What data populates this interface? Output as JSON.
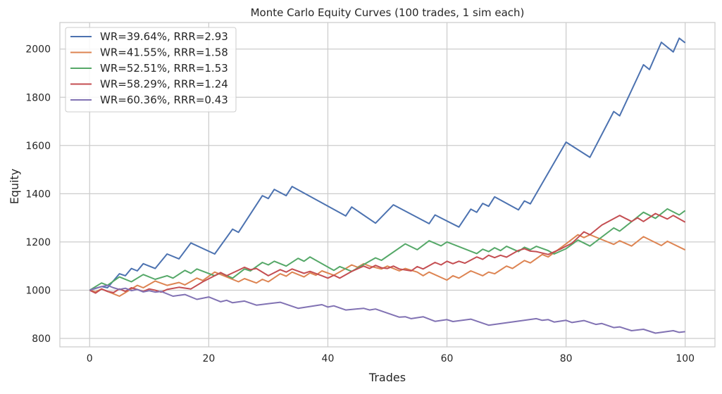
{
  "chart_data": {
    "type": "line",
    "title": "Monte Carlo Equity Curves (100 trades, 1 sim each)",
    "xlabel": "Trades",
    "ylabel": "Equity",
    "xlim": [
      -5,
      105
    ],
    "ylim": [
      765,
      2110
    ],
    "xticks": [
      0,
      20,
      40,
      60,
      80,
      100
    ],
    "yticks": [
      800,
      1000,
      1200,
      1400,
      1600,
      1800,
      2000
    ],
    "grid": true,
    "legend_position": "upper left",
    "x": [
      0,
      2,
      3,
      5,
      6,
      7,
      8,
      9,
      11,
      13,
      15,
      17,
      21,
      24,
      25,
      29,
      30,
      31,
      33,
      34,
      43,
      44,
      48,
      51,
      57,
      58,
      62,
      64,
      65,
      66,
      67,
      68,
      72,
      73,
      74,
      80,
      84,
      88,
      89,
      93,
      94,
      96,
      98,
      99,
      100
    ],
    "series": [
      {
        "name": "WR=39.64%, RRR=2.93",
        "color": "#4c72b0",
        "points": [
          [
            0,
            1000
          ],
          [
            2,
            1015
          ],
          [
            3,
            1010
          ],
          [
            5,
            1068
          ],
          [
            6,
            1060
          ],
          [
            7,
            1090
          ],
          [
            8,
            1080
          ],
          [
            9,
            1110
          ],
          [
            11,
            1090
          ],
          [
            13,
            1150
          ],
          [
            15,
            1130
          ],
          [
            17,
            1196
          ],
          [
            21,
            1150
          ],
          [
            24,
            1253
          ],
          [
            25,
            1240
          ],
          [
            29,
            1392
          ],
          [
            30,
            1380
          ],
          [
            31,
            1418
          ],
          [
            33,
            1392
          ],
          [
            34,
            1430
          ],
          [
            43,
            1308
          ],
          [
            44,
            1345
          ],
          [
            48,
            1278
          ],
          [
            51,
            1354
          ],
          [
            57,
            1276
          ],
          [
            58,
            1312
          ],
          [
            62,
            1262
          ],
          [
            64,
            1336
          ],
          [
            65,
            1323
          ],
          [
            66,
            1360
          ],
          [
            67,
            1348
          ],
          [
            68,
            1387
          ],
          [
            72,
            1333
          ],
          [
            73,
            1370
          ],
          [
            74,
            1358
          ],
          [
            80,
            1614
          ],
          [
            84,
            1551
          ],
          [
            88,
            1741
          ],
          [
            89,
            1723
          ],
          [
            93,
            1935
          ],
          [
            94,
            1915
          ],
          [
            96,
            2028
          ],
          [
            98,
            1988
          ],
          [
            99,
            2045
          ],
          [
            100,
            2026
          ]
        ]
      },
      {
        "name": "WR=41.55%, RRR=1.58",
        "color": "#dd8452",
        "points": [
          [
            0,
            1000
          ],
          [
            1,
            993
          ],
          [
            2,
            1005
          ],
          [
            3,
            995
          ],
          [
            4,
            985
          ],
          [
            5,
            975
          ],
          [
            6,
            990
          ],
          [
            7,
            1005
          ],
          [
            8,
            1020
          ],
          [
            9,
            1010
          ],
          [
            11,
            1038
          ],
          [
            13,
            1020
          ],
          [
            15,
            1032
          ],
          [
            16,
            1022
          ],
          [
            18,
            1050
          ],
          [
            19,
            1040
          ],
          [
            21,
            1075
          ],
          [
            23,
            1055
          ],
          [
            25,
            1035
          ],
          [
            26,
            1048
          ],
          [
            28,
            1030
          ],
          [
            29,
            1045
          ],
          [
            30,
            1035
          ],
          [
            32,
            1068
          ],
          [
            33,
            1058
          ],
          [
            34,
            1075
          ],
          [
            36,
            1055
          ],
          [
            37,
            1072
          ],
          [
            38,
            1062
          ],
          [
            39,
            1080
          ],
          [
            41,
            1062
          ],
          [
            43,
            1090
          ],
          [
            44,
            1105
          ],
          [
            45,
            1095
          ],
          [
            46,
            1110
          ],
          [
            47,
            1100
          ],
          [
            49,
            1088
          ],
          [
            50,
            1100
          ],
          [
            52,
            1080
          ],
          [
            53,
            1090
          ],
          [
            55,
            1075
          ],
          [
            56,
            1060
          ],
          [
            57,
            1075
          ],
          [
            60,
            1042
          ],
          [
            61,
            1060
          ],
          [
            62,
            1050
          ],
          [
            64,
            1080
          ],
          [
            66,
            1060
          ],
          [
            67,
            1075
          ],
          [
            68,
            1068
          ],
          [
            70,
            1100
          ],
          [
            71,
            1090
          ],
          [
            73,
            1123
          ],
          [
            74,
            1113
          ],
          [
            76,
            1148
          ],
          [
            77,
            1138
          ],
          [
            80,
            1192
          ],
          [
            82,
            1230
          ],
          [
            83,
            1218
          ],
          [
            84,
            1230
          ],
          [
            86,
            1210
          ],
          [
            88,
            1190
          ],
          [
            89,
            1205
          ],
          [
            91,
            1183
          ],
          [
            93,
            1222
          ],
          [
            96,
            1185
          ],
          [
            97,
            1203
          ],
          [
            100,
            1167
          ]
        ]
      },
      {
        "name": "WR=52.51%, RRR=1.53",
        "color": "#55a868",
        "points": [
          [
            0,
            1000
          ],
          [
            2,
            1030
          ],
          [
            3,
            1020
          ],
          [
            5,
            1055
          ],
          [
            7,
            1035
          ],
          [
            9,
            1065
          ],
          [
            11,
            1045
          ],
          [
            13,
            1060
          ],
          [
            14,
            1050
          ],
          [
            16,
            1082
          ],
          [
            17,
            1070
          ],
          [
            18,
            1088
          ],
          [
            21,
            1060
          ],
          [
            22,
            1072
          ],
          [
            24,
            1050
          ],
          [
            26,
            1088
          ],
          [
            27,
            1080
          ],
          [
            29,
            1115
          ],
          [
            30,
            1105
          ],
          [
            31,
            1120
          ],
          [
            33,
            1100
          ],
          [
            35,
            1132
          ],
          [
            36,
            1120
          ],
          [
            37,
            1138
          ],
          [
            41,
            1082
          ],
          [
            42,
            1098
          ],
          [
            44,
            1078
          ],
          [
            47,
            1120
          ],
          [
            48,
            1134
          ],
          [
            49,
            1124
          ],
          [
            53,
            1192
          ],
          [
            55,
            1168
          ],
          [
            57,
            1205
          ],
          [
            59,
            1184
          ],
          [
            60,
            1200
          ],
          [
            65,
            1152
          ],
          [
            66,
            1170
          ],
          [
            67,
            1160
          ],
          [
            68,
            1176
          ],
          [
            69,
            1164
          ],
          [
            70,
            1182
          ],
          [
            72,
            1160
          ],
          [
            73,
            1178
          ],
          [
            74,
            1168
          ],
          [
            75,
            1182
          ],
          [
            77,
            1164
          ],
          [
            78,
            1150
          ],
          [
            80,
            1172
          ],
          [
            82,
            1208
          ],
          [
            84,
            1183
          ],
          [
            88,
            1258
          ],
          [
            89,
            1245
          ],
          [
            93,
            1323
          ],
          [
            95,
            1298
          ],
          [
            97,
            1337
          ],
          [
            99,
            1312
          ],
          [
            100,
            1330
          ]
        ]
      },
      {
        "name": "WR=58.29%, RRR=1.24",
        "color": "#c44e52",
        "points": [
          [
            0,
            1000
          ],
          [
            1,
            988
          ],
          [
            2,
            1005
          ],
          [
            3,
            995
          ],
          [
            4,
            990
          ],
          [
            5,
            1005
          ],
          [
            6,
            995
          ],
          [
            7,
            1010
          ],
          [
            8,
            1003
          ],
          [
            9,
            995
          ],
          [
            10,
            1005
          ],
          [
            11,
            1000
          ],
          [
            12,
            992
          ],
          [
            13,
            1003
          ],
          [
            15,
            1012
          ],
          [
            17,
            1005
          ],
          [
            19,
            1035
          ],
          [
            21,
            1060
          ],
          [
            22,
            1073
          ],
          [
            23,
            1060
          ],
          [
            25,
            1083
          ],
          [
            26,
            1095
          ],
          [
            27,
            1085
          ],
          [
            28,
            1090
          ],
          [
            30,
            1060
          ],
          [
            32,
            1085
          ],
          [
            33,
            1075
          ],
          [
            34,
            1088
          ],
          [
            36,
            1070
          ],
          [
            37,
            1078
          ],
          [
            39,
            1060
          ],
          [
            40,
            1050
          ],
          [
            41,
            1062
          ],
          [
            42,
            1050
          ],
          [
            44,
            1078
          ],
          [
            46,
            1100
          ],
          [
            47,
            1090
          ],
          [
            48,
            1103
          ],
          [
            49,
            1093
          ],
          [
            50,
            1090
          ],
          [
            51,
            1100
          ],
          [
            52,
            1088
          ],
          [
            54,
            1080
          ],
          [
            55,
            1098
          ],
          [
            56,
            1088
          ],
          [
            58,
            1115
          ],
          [
            59,
            1105
          ],
          [
            60,
            1120
          ],
          [
            61,
            1110
          ],
          [
            62,
            1120
          ],
          [
            63,
            1112
          ],
          [
            65,
            1138
          ],
          [
            66,
            1128
          ],
          [
            67,
            1145
          ],
          [
            68,
            1135
          ],
          [
            69,
            1145
          ],
          [
            70,
            1137
          ],
          [
            72,
            1165
          ],
          [
            73,
            1172
          ],
          [
            74,
            1162
          ],
          [
            75,
            1160
          ],
          [
            77,
            1148
          ],
          [
            79,
            1170
          ],
          [
            81,
            1195
          ],
          [
            82,
            1218
          ],
          [
            83,
            1242
          ],
          [
            84,
            1230
          ],
          [
            86,
            1270
          ],
          [
            89,
            1310
          ],
          [
            91,
            1285
          ],
          [
            92,
            1300
          ],
          [
            93,
            1285
          ],
          [
            95,
            1318
          ],
          [
            97,
            1295
          ],
          [
            98,
            1310
          ],
          [
            100,
            1282
          ]
        ]
      },
      {
        "name": "WR=60.36%, RRR=0.43",
        "color": "#8172b3",
        "points": [
          [
            0,
            1000
          ],
          [
            1,
            1008
          ],
          [
            2,
            1015
          ],
          [
            3,
            1020
          ],
          [
            4,
            1010
          ],
          [
            5,
            1003
          ],
          [
            6,
            1008
          ],
          [
            7,
            998
          ],
          [
            8,
            1003
          ],
          [
            9,
            993
          ],
          [
            10,
            998
          ],
          [
            11,
            992
          ],
          [
            12,
            995
          ],
          [
            14,
            975
          ],
          [
            16,
            982
          ],
          [
            18,
            962
          ],
          [
            20,
            972
          ],
          [
            22,
            952
          ],
          [
            23,
            958
          ],
          [
            24,
            948
          ],
          [
            26,
            955
          ],
          [
            28,
            938
          ],
          [
            32,
            950
          ],
          [
            35,
            925
          ],
          [
            39,
            940
          ],
          [
            40,
            930
          ],
          [
            41,
            935
          ],
          [
            43,
            918
          ],
          [
            46,
            925
          ],
          [
            47,
            918
          ],
          [
            48,
            922
          ],
          [
            52,
            888
          ],
          [
            53,
            890
          ],
          [
            54,
            882
          ],
          [
            56,
            890
          ],
          [
            58,
            871
          ],
          [
            60,
            878
          ],
          [
            61,
            870
          ],
          [
            64,
            880
          ],
          [
            67,
            855
          ],
          [
            75,
            882
          ],
          [
            76,
            875
          ],
          [
            77,
            878
          ],
          [
            78,
            868
          ],
          [
            80,
            875
          ],
          [
            81,
            866
          ],
          [
            83,
            874
          ],
          [
            85,
            858
          ],
          [
            86,
            862
          ],
          [
            88,
            845
          ],
          [
            89,
            848
          ],
          [
            91,
            832
          ],
          [
            93,
            838
          ],
          [
            95,
            822
          ],
          [
            98,
            832
          ],
          [
            99,
            825
          ],
          [
            100,
            828
          ]
        ]
      }
    ]
  },
  "legend": {
    "items": [
      {
        "label": "WR=39.64%, RRR=2.93",
        "color": "#4c72b0"
      },
      {
        "label": "WR=41.55%, RRR=1.58",
        "color": "#dd8452"
      },
      {
        "label": "WR=52.51%, RRR=1.53",
        "color": "#55a868"
      },
      {
        "label": "WR=58.29%, RRR=1.24",
        "color": "#c44e52"
      },
      {
        "label": "WR=60.36%, RRR=0.43",
        "color": "#8172b3"
      }
    ]
  },
  "style": {
    "grid_color": "#cccccc",
    "spine_color": "#cccccc",
    "background": "#ffffff"
  }
}
